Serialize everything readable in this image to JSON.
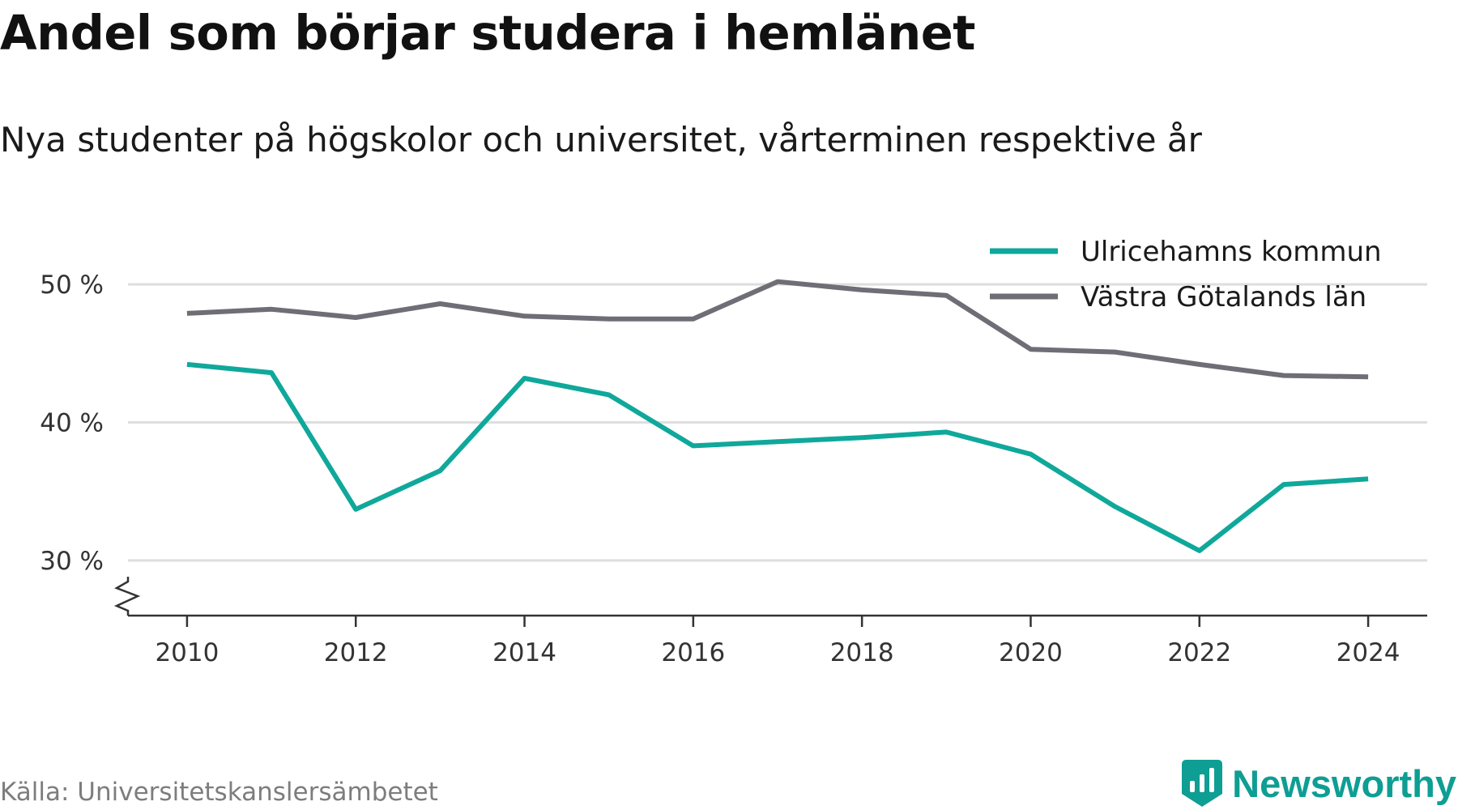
{
  "title": "Andel som börjar studera i hemlänet",
  "subtitle": "Nya studenter på högskolor och universitet, vårterminen respektive år",
  "source": "Källa: Universitetskanslersämbetet",
  "brand": {
    "name": "Newsworthy",
    "logo_icon": "bar-chart-badge-icon",
    "color": "#0e9e93"
  },
  "colors": {
    "grid": "#dedede",
    "axis": "#333333",
    "tick_text": "#333333"
  },
  "chart_data": {
    "type": "line",
    "title": "Andel som börjar studera i hemlänet",
    "subtitle": "Nya studenter på högskolor och universitet, vårterminen respektive år",
    "xlabel": "",
    "ylabel": "",
    "x": [
      2010,
      2011,
      2012,
      2013,
      2014,
      2015,
      2016,
      2017,
      2018,
      2019,
      2020,
      2021,
      2022,
      2023,
      2024
    ],
    "x_ticks": [
      "2010",
      "2012",
      "2014",
      "2016",
      "2018",
      "2020",
      "2022",
      "2024"
    ],
    "y_ticks": [
      {
        "value": 30,
        "label": "30 %"
      },
      {
        "value": 40,
        "label": "40 %"
      },
      {
        "value": 50,
        "label": "50 %"
      }
    ],
    "ylim": [
      26,
      53
    ],
    "xlim": [
      2009.3,
      2024.7
    ],
    "axis_break": true,
    "grid": true,
    "legend_position": "top-right",
    "series": [
      {
        "name": "Ulricehamns kommun",
        "color": "#0fa89b",
        "values": [
          44.2,
          43.6,
          33.7,
          36.5,
          43.2,
          42.0,
          38.3,
          38.6,
          38.9,
          39.3,
          37.7,
          33.9,
          30.7,
          35.5,
          35.9
        ]
      },
      {
        "name": "Västra Götalands län",
        "color": "#6f6d75",
        "values": [
          47.9,
          48.2,
          47.6,
          48.6,
          47.7,
          47.5,
          47.5,
          50.2,
          49.6,
          49.2,
          45.3,
          45.1,
          44.2,
          43.4,
          43.3
        ]
      }
    ]
  }
}
